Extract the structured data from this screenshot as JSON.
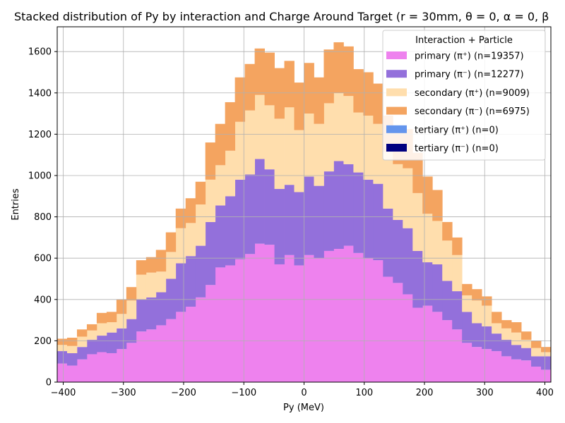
{
  "chart_data": {
    "type": "bar",
    "stacked": true,
    "histogram": true,
    "title": "Stacked distribution of Py by interaction and Charge Around Target (r = 30mm, θ = 0, α = 0, β",
    "xlabel": "Py (MeV)",
    "ylabel": "Entries",
    "xlim": [
      -410,
      410
    ],
    "ylim": [
      0,
      1720
    ],
    "xticks": [
      -400,
      -300,
      -200,
      -100,
      0,
      100,
      200,
      300,
      400
    ],
    "yticks": [
      0,
      200,
      400,
      600,
      800,
      1000,
      1200,
      1400,
      1600
    ],
    "grid": true,
    "legend_title": "Interaction + Particle",
    "legend_position": "top-right",
    "bin_edges_start": -410,
    "bin_width": 16.4,
    "series": [
      {
        "name": "primary (π⁺) (n=19357)",
        "color": "#ee82ee",
        "values": [
          90,
          80,
          110,
          135,
          145,
          140,
          160,
          190,
          245,
          255,
          275,
          305,
          340,
          365,
          410,
          470,
          555,
          565,
          595,
          620,
          670,
          665,
          570,
          615,
          565,
          615,
          600,
          635,
          645,
          660,
          625,
          600,
          590,
          510,
          480,
          425,
          360,
          370,
          340,
          300,
          255,
          190,
          170,
          160,
          150,
          125,
          110,
          105,
          75,
          60
        ]
      },
      {
        "name": "primary (π⁻) (n=12277)",
        "color": "#9370db",
        "values": [
          60,
          60,
          60,
          70,
          80,
          100,
          100,
          115,
          155,
          155,
          160,
          195,
          235,
          245,
          250,
          305,
          300,
          335,
          385,
          385,
          410,
          365,
          365,
          340,
          355,
          380,
          350,
          385,
          425,
          395,
          390,
          380,
          370,
          330,
          305,
          320,
          275,
          210,
          230,
          190,
          185,
          150,
          115,
          110,
          85,
          80,
          70,
          60,
          50,
          65
        ]
      },
      {
        "name": "secondary (π⁺) (n=9009)",
        "color": "#ffdead",
        "values": [
          30,
          35,
          50,
          45,
          60,
          50,
          70,
          90,
          120,
          120,
          100,
          130,
          170,
          160,
          200,
          205,
          195,
          220,
          280,
          310,
          310,
          310,
          340,
          375,
          300,
          305,
          300,
          330,
          330,
          330,
          290,
          310,
          290,
          275,
          270,
          290,
          280,
          235,
          210,
          195,
          175,
          80,
          110,
          100,
          50,
          55,
          60,
          40,
          40,
          20
        ]
      },
      {
        "name": "secondary (π⁻) (n=6975)",
        "color": "#f4a460",
        "values": [
          30,
          40,
          35,
          30,
          50,
          50,
          70,
          65,
          70,
          75,
          105,
          95,
          95,
          120,
          110,
          180,
          200,
          235,
          215,
          225,
          225,
          255,
          245,
          225,
          230,
          245,
          225,
          260,
          245,
          240,
          210,
          210,
          195,
          175,
          165,
          190,
          195,
          180,
          150,
          90,
          85,
          55,
          55,
          45,
          55,
          40,
          50,
          40,
          35,
          25
        ]
      },
      {
        "name": "tertiary (π⁺) (n=0)",
        "color": "#6495ed",
        "values": []
      },
      {
        "name": "tertiary (π⁻) (n=0)",
        "color": "#000080",
        "values": []
      }
    ]
  }
}
